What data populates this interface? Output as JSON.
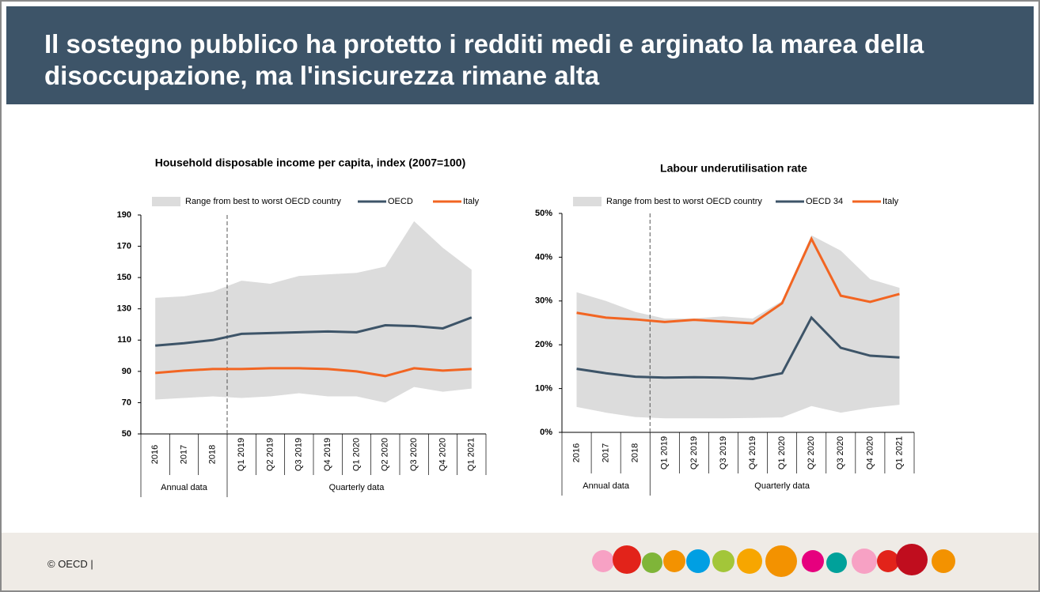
{
  "header": {
    "title": "Il sostegno pubblico ha protetto i redditi medi e arginato la marea della disoccupazione, ma l'insicurezza rimane alta"
  },
  "chart_data": [
    {
      "type": "line",
      "title": "Household disposable income per capita, index (2007=100)",
      "groups": [
        {
          "label": "Annual data",
          "categories": [
            "2016",
            "2017",
            "2018"
          ]
        },
        {
          "label": "Quarterly data",
          "categories": [
            "Q1 2019",
            "Q2 2019",
            "Q3 2019",
            "Q4 2019",
            "Q1 2020",
            "Q2 2020",
            "Q3 2020",
            "Q4 2020",
            "Q1 2021"
          ]
        }
      ],
      "band": {
        "name": "Range from best to worst OECD country",
        "color": "#dcdcdc",
        "high": [
          137,
          138,
          141,
          148,
          146,
          151,
          152,
          153,
          157,
          186,
          169,
          155
        ],
        "low": [
          72,
          73,
          74,
          73,
          74,
          76,
          74,
          74,
          70,
          80,
          77,
          79
        ]
      },
      "series": [
        {
          "name": "OECD",
          "color": "#3d5468",
          "values": [
            106.5,
            108,
            110,
            114,
            114.5,
            115,
            115.5,
            115,
            119.5,
            119,
            117.5,
            124.5
          ]
        },
        {
          "name": "Italy",
          "color": "#f26522",
          "values": [
            89,
            90.5,
            91.5,
            91.5,
            92,
            92,
            91.5,
            90,
            87,
            92,
            90.5,
            91.5
          ]
        }
      ],
      "ylim": [
        50,
        190
      ],
      "yticks": [
        50,
        70,
        90,
        110,
        130,
        150,
        170,
        190
      ]
    },
    {
      "type": "line",
      "title": "Labour underutilisation rate",
      "groups": [
        {
          "label": "Annual data",
          "categories": [
            "2016",
            "2017",
            "2018"
          ]
        },
        {
          "label": "Quarterly data",
          "categories": [
            "Q1 2019",
            "Q2 2019",
            "Q3 2019",
            "Q4 2019",
            "Q1 2020",
            "Q2 2020",
            "Q3 2020",
            "Q4 2020",
            "Q1 2021"
          ]
        }
      ],
      "band": {
        "name": "Range from best to worst OECD country",
        "color": "#dcdcdc",
        "high": [
          32,
          30,
          27.5,
          26,
          26,
          26.5,
          26,
          30,
          45,
          41.5,
          35,
          33
        ],
        "low": [
          5.8,
          4.5,
          3.5,
          3.2,
          3.2,
          3.2,
          3.3,
          3.4,
          6,
          4.5,
          5.6,
          6.3
        ]
      },
      "series": [
        {
          "name": "OECD 34",
          "color": "#3d5468",
          "values": [
            14.5,
            13.5,
            12.7,
            12.5,
            12.6,
            12.5,
            12.2,
            13.5,
            26.2,
            19.3,
            17.5,
            17.1
          ]
        },
        {
          "name": "Italy",
          "color": "#f26522",
          "values": [
            27.3,
            26.2,
            25.8,
            25.2,
            25.7,
            25.3,
            24.9,
            29.5,
            44.2,
            31.2,
            29.8,
            31.6
          ]
        }
      ],
      "ylim": [
        0,
        50
      ],
      "yticks": [
        {
          "value": 0,
          "label": "0%"
        },
        {
          "value": 10,
          "label": "10%"
        },
        {
          "value": 20,
          "label": "20%"
        },
        {
          "value": 30,
          "label": "30%"
        },
        {
          "value": 40,
          "label": "40%"
        },
        {
          "value": 50,
          "label": "50%"
        }
      ]
    }
  ],
  "footer": {
    "text": "© OECD |"
  }
}
